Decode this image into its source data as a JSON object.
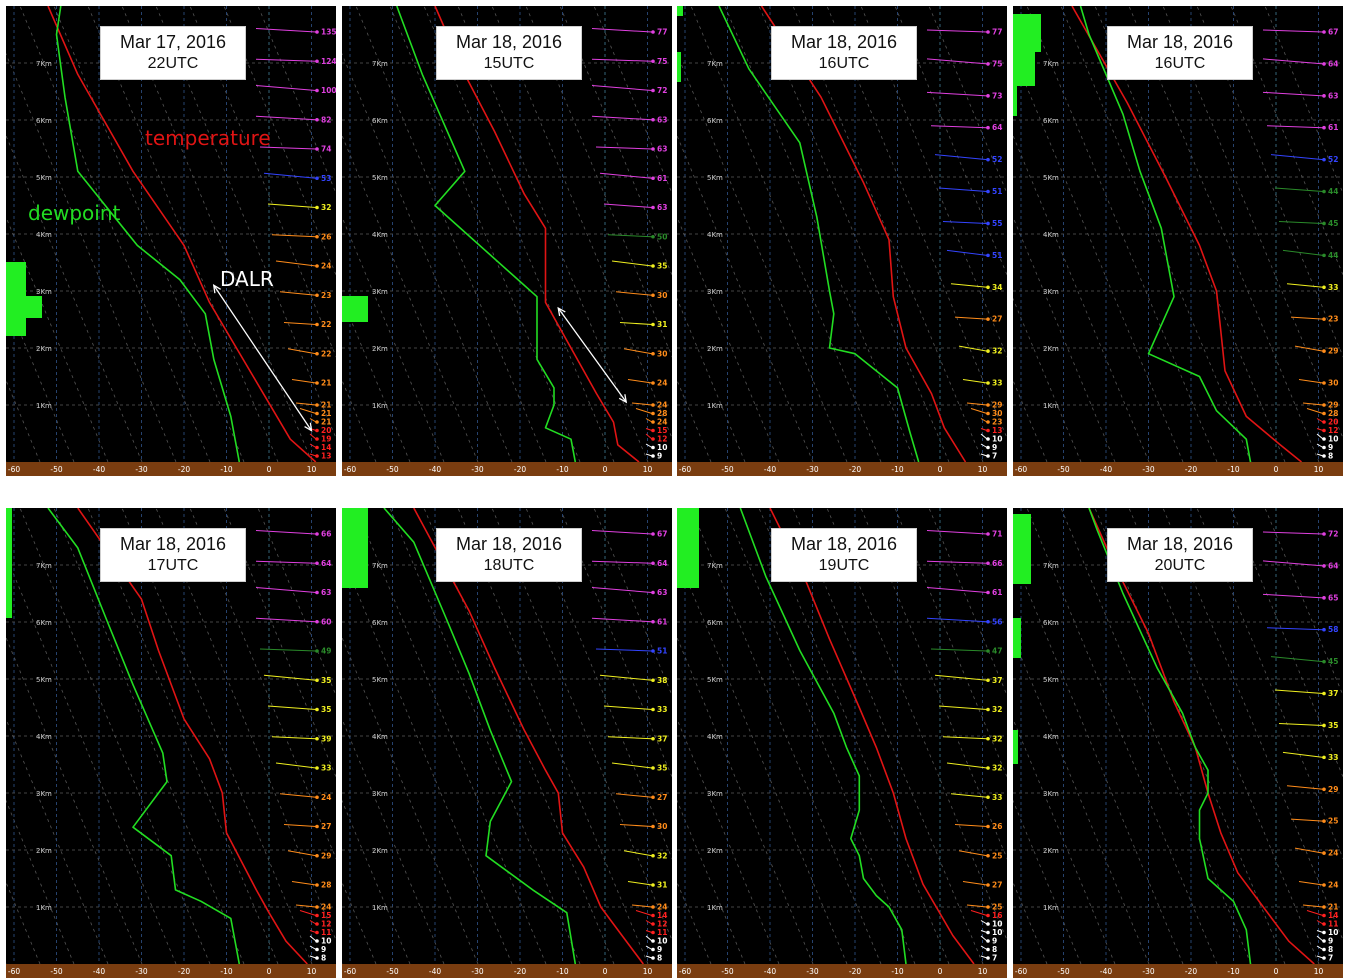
{
  "colors": {
    "temperature": "#e01414",
    "dewpoint": "#22dd22",
    "ground": "#7a3d10",
    "grid": "#5a5a5a",
    "dry_adiabat": "#555555",
    "cloud": "#22ee22",
    "annotation_temperature": "#e01414",
    "annotation_dewpoint": "#22dd22",
    "annotation_dalr": "#ffffff"
  },
  "annotations": {
    "temperature": "temperature",
    "dewpoint": "dewpoint",
    "dalr": "DALR"
  },
  "chart_data": [
    {
      "type": "line",
      "date": "Mar 17, 2016",
      "time": "22UTC",
      "xlim": [
        -60,
        12
      ],
      "height_km_range": [
        0,
        7.6
      ],
      "x_ticks": [
        -60,
        -50,
        -40,
        -30,
        -20,
        -10,
        0,
        10
      ],
      "height_ticks": [
        "1Km",
        "2Km",
        "3Km",
        "4Km",
        "5Km",
        "6Km",
        "7Km"
      ],
      "series": [
        {
          "name": "temperature",
          "points": [
            [
              11,
              0
            ],
            [
              5,
              0.4
            ],
            [
              -14,
              2.8
            ],
            [
              -20,
              3.8
            ],
            [
              -32,
              5.1
            ],
            [
              -45,
              6.8
            ],
            [
              -52,
              8
            ]
          ]
        },
        {
          "name": "dewpoint",
          "points": [
            [
              -7,
              0
            ],
            [
              -9,
              0.8
            ],
            [
              -13,
              1.8
            ],
            [
              -15,
              2.6
            ],
            [
              -21,
              3.2
            ],
            [
              -31,
              3.8
            ],
            [
              -45,
              5.1
            ],
            [
              -48,
              6.4
            ],
            [
              -50,
              7.5
            ],
            [
              -49,
              8
            ]
          ]
        }
      ],
      "wind_speeds": [
        13,
        14,
        19,
        20,
        21,
        21,
        21,
        21,
        22,
        22,
        23,
        24,
        26,
        32,
        53,
        74,
        82,
        100,
        124,
        135
      ],
      "dalr_arrow": true
    },
    {
      "type": "line",
      "date": "Mar 18, 2016",
      "time": "15UTC",
      "xlim": [
        -60,
        12
      ],
      "height_km_range": [
        0,
        7.6
      ],
      "x_ticks": [
        -60,
        -50,
        -40,
        -30,
        -20,
        -10,
        0,
        10
      ],
      "height_ticks": [
        "1Km",
        "2Km",
        "3Km",
        "4Km",
        "5Km",
        "6Km",
        "7Km"
      ],
      "series": [
        {
          "name": "temperature",
          "points": [
            [
              8,
              0
            ],
            [
              3,
              0.3
            ],
            [
              2,
              0.7
            ],
            [
              -2,
              1.2
            ],
            [
              -14,
              2.8
            ],
            [
              -14,
              3.3
            ],
            [
              -14,
              4.1
            ],
            [
              -19,
              4.7
            ],
            [
              -26,
              5.8
            ],
            [
              -33,
              6.8
            ],
            [
              -40,
              8
            ]
          ]
        },
        {
          "name": "dewpoint",
          "points": [
            [
              -7,
              0
            ],
            [
              -8,
              0.4
            ],
            [
              -14,
              0.6
            ],
            [
              -12,
              1
            ],
            [
              -12,
              1.3
            ],
            [
              -16,
              1.8
            ],
            [
              -16,
              2.9
            ],
            [
              -22,
              3.3
            ],
            [
              -40,
              4.5
            ],
            [
              -33,
              5.1
            ],
            [
              -43,
              6.8
            ],
            [
              -48,
              7.8
            ],
            [
              -49,
              8
            ]
          ]
        }
      ],
      "wind_speeds": [
        9,
        10,
        12,
        15,
        24,
        28,
        24,
        24,
        30,
        31,
        30,
        35,
        50,
        63,
        61,
        63,
        63,
        72,
        75,
        77
      ],
      "dalr_arrow": true
    },
    {
      "type": "line",
      "date": "Mar 18, 2016",
      "time": "16UTC",
      "xlim": [
        -60,
        12
      ],
      "height_km_range": [
        0,
        7.6
      ],
      "x_ticks": [
        -60,
        -50,
        -40,
        -30,
        -20,
        -10,
        0,
        10
      ],
      "height_ticks": [
        "1Km",
        "2Km",
        "3Km",
        "4Km",
        "5Km",
        "6Km",
        "7Km"
      ],
      "series": [
        {
          "name": "temperature",
          "points": [
            [
              6,
              0
            ],
            [
              1,
              0.6
            ],
            [
              -2,
              1.2
            ],
            [
              -8,
              2
            ],
            [
              -11,
              2.9
            ],
            [
              -12,
              3.9
            ],
            [
              -18,
              4.9
            ],
            [
              -28,
              6.4
            ],
            [
              -42,
              8
            ]
          ]
        },
        {
          "name": "dewpoint",
          "points": [
            [
              -5,
              0
            ],
            [
              -7,
              0.5
            ],
            [
              -10,
              1.3
            ],
            [
              -20,
              1.9
            ],
            [
              -26,
              2
            ],
            [
              -25,
              2.6
            ],
            [
              -26,
              3
            ],
            [
              -29,
              4.3
            ],
            [
              -33,
              5.6
            ],
            [
              -45,
              6.9
            ],
            [
              -52,
              8
            ]
          ]
        }
      ],
      "wind_speeds": [
        7,
        9,
        10,
        13,
        23,
        30,
        29,
        33,
        32,
        27,
        34,
        51,
        55,
        51,
        52,
        64,
        73,
        75,
        77
      ],
      "dalr_arrow": false
    },
    {
      "type": "line",
      "date": "Mar 18, 2016",
      "time": "16UTC",
      "xlim": [
        -60,
        12
      ],
      "height_km_range": [
        0,
        7.6
      ],
      "x_ticks": [
        -60,
        -50,
        -40,
        -30,
        -20,
        -10,
        0,
        10
      ],
      "height_ticks": [
        "1Km",
        "2Km",
        "3Km",
        "4Km",
        "5Km",
        "6Km",
        "7Km"
      ],
      "series": [
        {
          "name": "temperature",
          "points": [
            [
              6,
              0
            ],
            [
              1,
              0.3
            ],
            [
              -7,
              0.8
            ],
            [
              -12,
              1.6
            ],
            [
              -13,
              2.3
            ],
            [
              -14,
              3
            ],
            [
              -18,
              3.8
            ],
            [
              -26,
              5
            ],
            [
              -35,
              6.3
            ],
            [
              -48,
              8
            ]
          ]
        },
        {
          "name": "dewpoint",
          "points": [
            [
              -6,
              0
            ],
            [
              -7,
              0.4
            ],
            [
              -14,
              0.9
            ],
            [
              -18,
              1.5
            ],
            [
              -30,
              1.9
            ],
            [
              -24,
              2.9
            ],
            [
              -27,
              4.1
            ],
            [
              -32,
              5.1
            ],
            [
              -36,
              6.1
            ],
            [
              -44,
              7.5
            ],
            [
              -46,
              8
            ]
          ]
        }
      ],
      "wind_speeds": [
        8,
        9,
        10,
        12,
        20,
        28,
        29,
        30,
        29,
        23,
        33,
        44,
        45,
        44,
        52,
        61,
        63,
        64,
        67
      ],
      "dalr_arrow": false
    },
    {
      "type": "line",
      "date": "Mar 18, 2016",
      "time": "17UTC",
      "xlim": [
        -60,
        12
      ],
      "height_km_range": [
        0,
        7.6
      ],
      "x_ticks": [
        -60,
        -50,
        -40,
        -30,
        -20,
        -10,
        0,
        10
      ],
      "height_ticks": [
        "1Km",
        "2Km",
        "3Km",
        "4Km",
        "5Km",
        "6Km",
        "7Km"
      ],
      "series": [
        {
          "name": "temperature",
          "points": [
            [
              9,
              0
            ],
            [
              4,
              0.4
            ],
            [
              0,
              0.9
            ],
            [
              -3,
              1.3
            ],
            [
              -10,
              2.3
            ],
            [
              -11,
              3
            ],
            [
              -14,
              3.6
            ],
            [
              -20,
              4.3
            ],
            [
              -26,
              5.5
            ],
            [
              -30,
              6.4
            ],
            [
              -45,
              8
            ]
          ]
        },
        {
          "name": "dewpoint",
          "points": [
            [
              -7,
              0
            ],
            [
              -9,
              0.8
            ],
            [
              -16,
              1.1
            ],
            [
              -22,
              1.3
            ],
            [
              -23,
              1.9
            ],
            [
              -32,
              2.4
            ],
            [
              -24,
              3.2
            ],
            [
              -25,
              3.7
            ],
            [
              -32,
              4.9
            ],
            [
              -38,
              6
            ],
            [
              -45,
              7.3
            ],
            [
              -52,
              8
            ]
          ]
        }
      ],
      "wind_speeds": [
        8,
        9,
        10,
        11,
        12,
        15,
        24,
        28,
        29,
        27,
        24,
        33,
        39,
        35,
        35,
        49,
        60,
        63,
        64,
        66
      ],
      "dalr_arrow": false
    },
    {
      "type": "line",
      "date": "Mar 18, 2016",
      "time": "18UTC",
      "xlim": [
        -60,
        12
      ],
      "height_km_range": [
        0,
        7.6
      ],
      "x_ticks": [
        -60,
        -50,
        -40,
        -30,
        -20,
        -10,
        0,
        10
      ],
      "height_ticks": [
        "1Km",
        "2Km",
        "3Km",
        "4Km",
        "5Km",
        "6Km",
        "7Km"
      ],
      "series": [
        {
          "name": "temperature",
          "points": [
            [
              9,
              0
            ],
            [
              4,
              0.5
            ],
            [
              -1,
              1
            ],
            [
              -5,
              1.7
            ],
            [
              -10,
              2.3
            ],
            [
              -11,
              3
            ],
            [
              -14,
              3.4
            ],
            [
              -19,
              4.1
            ],
            [
              -26,
              5.2
            ],
            [
              -32,
              6.2
            ],
            [
              -45,
              8
            ]
          ]
        },
        {
          "name": "dewpoint",
          "points": [
            [
              -7,
              0
            ],
            [
              -9,
              0.9
            ],
            [
              -17,
              1.3
            ],
            [
              -28,
              1.9
            ],
            [
              -27,
              2.5
            ],
            [
              -22,
              3.2
            ],
            [
              -27,
              4.1
            ],
            [
              -32,
              5.1
            ],
            [
              -37,
              6
            ],
            [
              -45,
              7.4
            ],
            [
              -52,
              8
            ]
          ]
        }
      ],
      "wind_speeds": [
        8,
        9,
        10,
        11,
        12,
        14,
        24,
        31,
        32,
        30,
        27,
        35,
        37,
        33,
        38,
        51,
        61,
        63,
        64,
        67
      ],
      "dalr_arrow": false
    },
    {
      "type": "line",
      "date": "Mar 18, 2016",
      "time": "19UTC",
      "xlim": [
        -60,
        12
      ],
      "height_km_range": [
        0,
        7.6
      ],
      "x_ticks": [
        -60,
        -50,
        -40,
        -30,
        -20,
        -10,
        0,
        10
      ],
      "height_ticks": [
        "1Km",
        "2Km",
        "3Km",
        "4Km",
        "5Km",
        "6Km",
        "7Km"
      ],
      "series": [
        {
          "name": "temperature",
          "points": [
            [
              8,
              0
            ],
            [
              3,
              0.5
            ],
            [
              -4,
              1.4
            ],
            [
              -8,
              2.2
            ],
            [
              -11,
              3
            ],
            [
              -15,
              3.8
            ],
            [
              -19,
              4.5
            ],
            [
              -26,
              5.7
            ],
            [
              -32,
              6.8
            ],
            [
              -40,
              8
            ]
          ]
        },
        {
          "name": "dewpoint",
          "points": [
            [
              -8,
              0
            ],
            [
              -9,
              0.6
            ],
            [
              -12,
              1
            ],
            [
              -15,
              1.2
            ],
            [
              -18,
              1.5
            ],
            [
              -19,
              1.9
            ],
            [
              -21,
              2.2
            ],
            [
              -19,
              2.7
            ],
            [
              -19,
              3.3
            ],
            [
              -22,
              3.8
            ],
            [
              -25,
              4.4
            ],
            [
              -33,
              5.5
            ],
            [
              -41,
              6.8
            ],
            [
              -47,
              8
            ]
          ]
        }
      ],
      "wind_speeds": [
        7,
        8,
        9,
        10,
        10,
        16,
        25,
        27,
        25,
        26,
        33,
        32,
        32,
        32,
        37,
        47,
        56,
        61,
        66,
        71
      ],
      "dalr_arrow": false
    },
    {
      "type": "line",
      "date": "Mar 18, 2016",
      "time": "20UTC",
      "xlim": [
        -60,
        12
      ],
      "height_km_range": [
        0,
        7.6
      ],
      "x_ticks": [
        -60,
        -50,
        -40,
        -30,
        -20,
        -10,
        0,
        10
      ],
      "height_ticks": [
        "1Km",
        "2Km",
        "3Km",
        "4Km",
        "5Km",
        "6Km",
        "7Km"
      ],
      "series": [
        {
          "name": "temperature",
          "points": [
            [
              9,
              0
            ],
            [
              3,
              0.4
            ],
            [
              -3,
              1
            ],
            [
              -9,
              1.6
            ],
            [
              -13,
              2.3
            ],
            [
              -16,
              3
            ],
            [
              -19,
              3.8
            ],
            [
              -24,
              4.6
            ],
            [
              -30,
              5.8
            ],
            [
              -38,
              7
            ],
            [
              -44,
              8
            ]
          ]
        },
        {
          "name": "dewpoint",
          "points": [
            [
              -6,
              0
            ],
            [
              -7,
              0.6
            ],
            [
              -10,
              1.1
            ],
            [
              -16,
              1.5
            ],
            [
              -18,
              2.2
            ],
            [
              -18,
              2.7
            ],
            [
              -16,
              3
            ],
            [
              -16,
              3.4
            ],
            [
              -19,
              3.8
            ],
            [
              -22,
              4.4
            ],
            [
              -28,
              5.2
            ],
            [
              -36,
              6.5
            ],
            [
              -42,
              7.6
            ],
            [
              -44,
              8
            ]
          ]
        }
      ],
      "wind_speeds": [
        7,
        8,
        9,
        10,
        11,
        14,
        21,
        24,
        24,
        25,
        29,
        33,
        35,
        37,
        45,
        58,
        65,
        64,
        72
      ],
      "dalr_arrow": false
    }
  ]
}
